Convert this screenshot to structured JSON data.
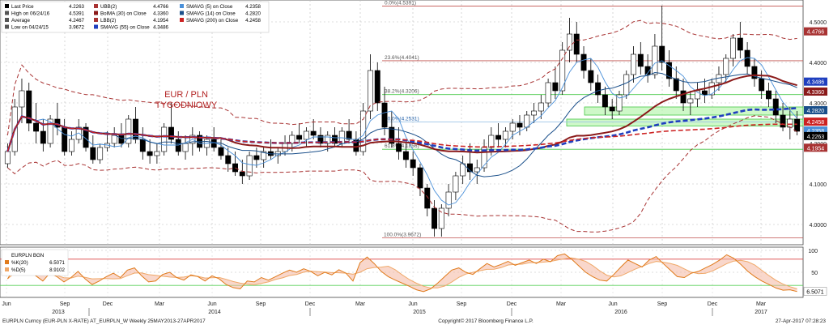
{
  "chart_data": [
    {
      "type": "candlestick",
      "title": "EUR / PLN",
      "subtitle": "TYGODNIOWY",
      "ylim": [
        3.95,
        4.55
      ],
      "yticks": [
        "4.0000",
        "4.1000",
        "4.2000",
        "4.3000",
        "4.4000",
        "4.5000"
      ],
      "x_months": [
        "Jun",
        "Sep",
        "Dec",
        "Mar",
        "Jun",
        "Sep",
        "Dec",
        "Mar",
        "Jun",
        "Sep",
        "Dec",
        "Mar",
        "Jun",
        "Sep",
        "Dec",
        "Mar"
      ],
      "x_years": [
        "2013",
        "2014",
        "2015",
        "2016",
        "2017"
      ],
      "legend": [
        {
          "label": "Last Price",
          "value": "4.2263",
          "color": "#000000"
        },
        {
          "label": "High on 06/24/16",
          "value": "4.5391",
          "color": "#555555"
        },
        {
          "label": "Average",
          "value": "4.2467",
          "color": "#555555"
        },
        {
          "label": "Low on 04/24/15",
          "value": "3.9672",
          "color": "#555555"
        },
        {
          "label": "UBB(2)",
          "value": "4.4766",
          "color": "#a83232"
        },
        {
          "label": "BolMA (30) on Close",
          "value": "4.3360",
          "color": "#8b1a1a"
        },
        {
          "label": "LBB(2)",
          "value": "4.1954",
          "color": "#a83232"
        },
        {
          "label": "SMAVG (55) on Close",
          "value": "4.3486",
          "color": "#1f3fbf"
        },
        {
          "label": "SMAVG (5) on Close",
          "value": "4.2358",
          "color": "#4a90d9"
        },
        {
          "label": "SMAVG (14) on Close",
          "value": "4.2820",
          "color": "#1a4f8a"
        },
        {
          "label": "SMAVG (200) on Close",
          "value": "4.2458",
          "color": "#cc2222"
        }
      ],
      "fib_levels": [
        {
          "label": "0.0%(4.5391)",
          "value": 4.5391
        },
        {
          "label": "23.6%(4.4041)",
          "value": 4.4041
        },
        {
          "label": "38.2%(4.3206)",
          "value": 4.3206
        },
        {
          "label": "50.0%(4.2531)",
          "value": 4.2531
        },
        {
          "label": "61.8%(4.1856)",
          "value": 4.1856
        },
        {
          "label": "100.0%(3.9672)",
          "value": 3.9672
        }
      ],
      "right_labels": [
        {
          "text": "4.4766",
          "color": "#a83232"
        },
        {
          "text": "4.3486",
          "color": "#1f3fbf"
        },
        {
          "text": "4.3360",
          "color": "#8b1a1a"
        },
        {
          "text": "4.2820",
          "color": "#1a4f8a"
        },
        {
          "text": "4.2458",
          "color": "#cc2222"
        },
        {
          "text": "4.2358",
          "color": "#4a90d9"
        },
        {
          "text": "4.2263",
          "color": "#000000"
        },
        {
          "text": "4.1954",
          "color": "#a83232"
        }
      ],
      "candles": [
        {
          "o": 4.15,
          "h": 4.2,
          "l": 4.14,
          "c": 4.18
        },
        {
          "o": 4.18,
          "h": 4.31,
          "l": 4.17,
          "c": 4.29
        },
        {
          "o": 4.29,
          "h": 4.36,
          "l": 4.25,
          "c": 4.33
        },
        {
          "o": 4.33,
          "h": 4.35,
          "l": 4.23,
          "c": 4.25
        },
        {
          "o": 4.25,
          "h": 4.3,
          "l": 4.2,
          "c": 4.23
        },
        {
          "o": 4.23,
          "h": 4.26,
          "l": 4.18,
          "c": 4.2
        },
        {
          "o": 4.2,
          "h": 4.27,
          "l": 4.19,
          "c": 4.26
        },
        {
          "o": 4.26,
          "h": 4.3,
          "l": 4.22,
          "c": 4.24
        },
        {
          "o": 4.24,
          "h": 4.26,
          "l": 4.17,
          "c": 4.18
        },
        {
          "o": 4.18,
          "h": 4.23,
          "l": 4.17,
          "c": 4.21
        },
        {
          "o": 4.21,
          "h": 4.26,
          "l": 4.2,
          "c": 4.24
        },
        {
          "o": 4.24,
          "h": 4.25,
          "l": 4.18,
          "c": 4.19
        },
        {
          "o": 4.19,
          "h": 4.22,
          "l": 4.15,
          "c": 4.16
        },
        {
          "o": 4.16,
          "h": 4.2,
          "l": 4.15,
          "c": 4.19
        },
        {
          "o": 4.19,
          "h": 4.23,
          "l": 4.18,
          "c": 4.2
        },
        {
          "o": 4.2,
          "h": 4.24,
          "l": 4.19,
          "c": 4.22
        },
        {
          "o": 4.22,
          "h": 4.25,
          "l": 4.19,
          "c": 4.2
        },
        {
          "o": 4.2,
          "h": 4.27,
          "l": 4.19,
          "c": 4.26
        },
        {
          "o": 4.26,
          "h": 4.29,
          "l": 4.2,
          "c": 4.21
        },
        {
          "o": 4.21,
          "h": 4.24,
          "l": 4.16,
          "c": 4.18
        },
        {
          "o": 4.18,
          "h": 4.21,
          "l": 4.15,
          "c": 4.17
        },
        {
          "o": 4.17,
          "h": 4.2,
          "l": 4.15,
          "c": 4.18
        },
        {
          "o": 4.18,
          "h": 4.25,
          "l": 4.17,
          "c": 4.24
        },
        {
          "o": 4.24,
          "h": 4.3,
          "l": 4.2,
          "c": 4.21
        },
        {
          "o": 4.21,
          "h": 4.23,
          "l": 4.17,
          "c": 4.18
        },
        {
          "o": 4.18,
          "h": 4.22,
          "l": 4.16,
          "c": 4.2
        },
        {
          "o": 4.2,
          "h": 4.24,
          "l": 4.17,
          "c": 4.22
        },
        {
          "o": 4.22,
          "h": 4.23,
          "l": 4.18,
          "c": 4.19
        },
        {
          "o": 4.19,
          "h": 4.22,
          "l": 4.17,
          "c": 4.21
        },
        {
          "o": 4.21,
          "h": 4.24,
          "l": 4.18,
          "c": 4.19
        },
        {
          "o": 4.19,
          "h": 4.21,
          "l": 4.16,
          "c": 4.17
        },
        {
          "o": 4.17,
          "h": 4.19,
          "l": 4.13,
          "c": 4.15
        },
        {
          "o": 4.15,
          "h": 4.18,
          "l": 4.12,
          "c": 4.13
        },
        {
          "o": 4.13,
          "h": 4.16,
          "l": 4.1,
          "c": 4.12
        },
        {
          "o": 4.12,
          "h": 4.18,
          "l": 4.11,
          "c": 4.17
        },
        {
          "o": 4.17,
          "h": 4.19,
          "l": 4.14,
          "c": 4.16
        },
        {
          "o": 4.16,
          "h": 4.19,
          "l": 4.14,
          "c": 4.18
        },
        {
          "o": 4.18,
          "h": 4.21,
          "l": 4.16,
          "c": 4.17
        },
        {
          "o": 4.17,
          "h": 4.19,
          "l": 4.15,
          "c": 4.18
        },
        {
          "o": 4.18,
          "h": 4.22,
          "l": 4.17,
          "c": 4.2
        },
        {
          "o": 4.2,
          "h": 4.23,
          "l": 4.18,
          "c": 4.22
        },
        {
          "o": 4.22,
          "h": 4.25,
          "l": 4.2,
          "c": 4.21
        },
        {
          "o": 4.21,
          "h": 4.24,
          "l": 4.19,
          "c": 4.23
        },
        {
          "o": 4.23,
          "h": 4.26,
          "l": 4.21,
          "c": 4.22
        },
        {
          "o": 4.22,
          "h": 4.24,
          "l": 4.19,
          "c": 4.2
        },
        {
          "o": 4.2,
          "h": 4.23,
          "l": 4.18,
          "c": 4.22
        },
        {
          "o": 4.22,
          "h": 4.24,
          "l": 4.19,
          "c": 4.2
        },
        {
          "o": 4.2,
          "h": 4.24,
          "l": 4.19,
          "c": 4.23
        },
        {
          "o": 4.23,
          "h": 4.26,
          "l": 4.2,
          "c": 4.21
        },
        {
          "o": 4.21,
          "h": 4.23,
          "l": 4.17,
          "c": 4.18
        },
        {
          "o": 4.18,
          "h": 4.3,
          "l": 4.17,
          "c": 4.28
        },
        {
          "o": 4.28,
          "h": 4.42,
          "l": 4.26,
          "c": 4.38
        },
        {
          "o": 4.38,
          "h": 4.4,
          "l": 4.28,
          "c": 4.3
        },
        {
          "o": 4.3,
          "h": 4.34,
          "l": 4.22,
          "c": 4.24
        },
        {
          "o": 4.24,
          "h": 4.28,
          "l": 4.19,
          "c": 4.2
        },
        {
          "o": 4.2,
          "h": 4.24,
          "l": 4.16,
          "c": 4.18
        },
        {
          "o": 4.18,
          "h": 4.2,
          "l": 4.14,
          "c": 4.16
        },
        {
          "o": 4.16,
          "h": 4.18,
          "l": 4.12,
          "c": 4.14
        },
        {
          "o": 4.14,
          "h": 4.15,
          "l": 4.07,
          "c": 4.09
        },
        {
          "o": 4.09,
          "h": 4.1,
          "l": 4.02,
          "c": 4.04
        },
        {
          "o": 4.04,
          "h": 4.06,
          "l": 3.97,
          "c": 3.99
        },
        {
          "o": 3.99,
          "h": 4.05,
          "l": 3.97,
          "c": 4.04
        },
        {
          "o": 4.04,
          "h": 4.1,
          "l": 4.02,
          "c": 4.08
        },
        {
          "o": 4.08,
          "h": 4.13,
          "l": 4.06,
          "c": 4.12
        },
        {
          "o": 4.12,
          "h": 4.17,
          "l": 4.1,
          "c": 4.15
        },
        {
          "o": 4.15,
          "h": 4.2,
          "l": 4.11,
          "c": 4.13
        },
        {
          "o": 4.13,
          "h": 4.16,
          "l": 4.1,
          "c": 4.14
        },
        {
          "o": 4.14,
          "h": 4.21,
          "l": 4.13,
          "c": 4.19
        },
        {
          "o": 4.19,
          "h": 4.24,
          "l": 4.17,
          "c": 4.22
        },
        {
          "o": 4.22,
          "h": 4.25,
          "l": 4.19,
          "c": 4.21
        },
        {
          "o": 4.21,
          "h": 4.24,
          "l": 4.19,
          "c": 4.23
        },
        {
          "o": 4.23,
          "h": 4.26,
          "l": 4.21,
          "c": 4.25
        },
        {
          "o": 4.25,
          "h": 4.27,
          "l": 4.22,
          "c": 4.24
        },
        {
          "o": 4.24,
          "h": 4.28,
          "l": 4.23,
          "c": 4.27
        },
        {
          "o": 4.27,
          "h": 4.3,
          "l": 4.25,
          "c": 4.28
        },
        {
          "o": 4.28,
          "h": 4.32,
          "l": 4.26,
          "c": 4.3
        },
        {
          "o": 4.3,
          "h": 4.36,
          "l": 4.29,
          "c": 4.35
        },
        {
          "o": 4.35,
          "h": 4.39,
          "l": 4.31,
          "c": 4.33
        },
        {
          "o": 4.33,
          "h": 4.45,
          "l": 4.32,
          "c": 4.43
        },
        {
          "o": 4.43,
          "h": 4.51,
          "l": 4.4,
          "c": 4.47
        },
        {
          "o": 4.47,
          "h": 4.5,
          "l": 4.4,
          "c": 4.42
        },
        {
          "o": 4.42,
          "h": 4.44,
          "l": 4.36,
          "c": 4.38
        },
        {
          "o": 4.38,
          "h": 4.41,
          "l": 4.33,
          "c": 4.35
        },
        {
          "o": 4.35,
          "h": 4.37,
          "l": 4.3,
          "c": 4.32
        },
        {
          "o": 4.32,
          "h": 4.34,
          "l": 4.27,
          "c": 4.29
        },
        {
          "o": 4.29,
          "h": 4.31,
          "l": 4.26,
          "c": 4.28
        },
        {
          "o": 4.28,
          "h": 4.33,
          "l": 4.27,
          "c": 4.32
        },
        {
          "o": 4.32,
          "h": 4.38,
          "l": 4.31,
          "c": 4.37
        },
        {
          "o": 4.37,
          "h": 4.44,
          "l": 4.35,
          "c": 4.42
        },
        {
          "o": 4.42,
          "h": 4.45,
          "l": 4.37,
          "c": 4.39
        },
        {
          "o": 4.39,
          "h": 4.42,
          "l": 4.35,
          "c": 4.37
        },
        {
          "o": 4.37,
          "h": 4.47,
          "l": 4.36,
          "c": 4.44
        },
        {
          "o": 4.44,
          "h": 4.54,
          "l": 4.38,
          "c": 4.4
        },
        {
          "o": 4.4,
          "h": 4.43,
          "l": 4.34,
          "c": 4.36
        },
        {
          "o": 4.36,
          "h": 4.39,
          "l": 4.31,
          "c": 4.33
        },
        {
          "o": 4.33,
          "h": 4.36,
          "l": 4.28,
          "c": 4.3
        },
        {
          "o": 4.3,
          "h": 4.33,
          "l": 4.27,
          "c": 4.31
        },
        {
          "o": 4.31,
          "h": 4.35,
          "l": 4.29,
          "c": 4.33
        },
        {
          "o": 4.33,
          "h": 4.36,
          "l": 4.3,
          "c": 4.32
        },
        {
          "o": 4.32,
          "h": 4.36,
          "l": 4.31,
          "c": 4.35
        },
        {
          "o": 4.35,
          "h": 4.39,
          "l": 4.33,
          "c": 4.37
        },
        {
          "o": 4.37,
          "h": 4.42,
          "l": 4.35,
          "c": 4.41
        },
        {
          "o": 4.41,
          "h": 4.47,
          "l": 4.39,
          "c": 4.46
        },
        {
          "o": 4.46,
          "h": 4.5,
          "l": 4.41,
          "c": 4.43
        },
        {
          "o": 4.43,
          "h": 4.45,
          "l": 4.37,
          "c": 4.39
        },
        {
          "o": 4.39,
          "h": 4.41,
          "l": 4.34,
          "c": 4.36
        },
        {
          "o": 4.36,
          "h": 4.38,
          "l": 4.31,
          "c": 4.33
        },
        {
          "o": 4.33,
          "h": 4.35,
          "l": 4.29,
          "c": 4.31
        },
        {
          "o": 4.31,
          "h": 4.33,
          "l": 4.25,
          "c": 4.27
        },
        {
          "o": 4.27,
          "h": 4.3,
          "l": 4.23,
          "c": 4.24
        },
        {
          "o": 4.24,
          "h": 4.29,
          "l": 4.21,
          "c": 4.26
        },
        {
          "o": 4.26,
          "h": 4.28,
          "l": 4.22,
          "c": 4.23
        }
      ],
      "oscillator": {
        "title": "EURPLN BGN",
        "series": [
          {
            "name": "%K(20)",
            "value": "6.5071",
            "color": "#e07a1a"
          },
          {
            "name": "%D(5)",
            "value": "8.9102",
            "color": "#f0a868"
          }
        ],
        "ylim": [
          0,
          100
        ],
        "yticks": [
          "100",
          "50"
        ],
        "right_label": "6.5071",
        "k": [
          35,
          62,
          78,
          55,
          42,
          30,
          48,
          40,
          28,
          38,
          52,
          35,
          22,
          30,
          40,
          48,
          38,
          55,
          60,
          42,
          28,
          30,
          45,
          50,
          38,
          32,
          44,
          40,
          30,
          42,
          35,
          22,
          15,
          12,
          30,
          28,
          38,
          32,
          40,
          48,
          55,
          50,
          58,
          52,
          42,
          50,
          44,
          56,
          48,
          30,
          72,
          85,
          70,
          52,
          40,
          32,
          25,
          18,
          10,
          6,
          12,
          25,
          40,
          55,
          60,
          50,
          45,
          58,
          70,
          62,
          68,
          75,
          66,
          72,
          78,
          70,
          80,
          74,
          88,
          92,
          80,
          65,
          50,
          40,
          32,
          30,
          45,
          62,
          78,
          70,
          62,
          78,
          86,
          70,
          55,
          40,
          38,
          48,
          52,
          60,
          68,
          78,
          90,
          82,
          68,
          52,
          40,
          30,
          22,
          14,
          9,
          10,
          6
        ]
      },
      "footer": {
        "left": "EURPLN Curncy (EUR-PLN X-RATE) AT_EURPLN_W  Weekly 25MAY2013-27APR2017",
        "center": "Copyright© 2017 Bloomberg Finance L.P.",
        "right": "27-Apr-2017 07:28:23"
      }
    }
  ]
}
